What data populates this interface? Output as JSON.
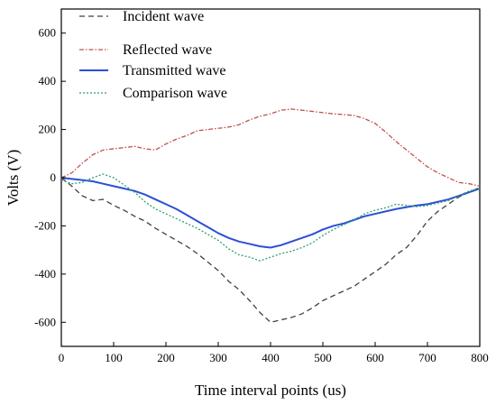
{
  "chart_data": {
    "type": "line",
    "title": "",
    "xlabel": "Time interval points (us)",
    "ylabel": "Volts (V)",
    "xlim": [
      0,
      800
    ],
    "ylim": [
      -700,
      700
    ],
    "x_ticks": [
      0,
      100,
      200,
      300,
      400,
      500,
      600,
      700,
      800
    ],
    "y_ticks": [
      -600,
      -400,
      -200,
      0,
      200,
      400,
      600
    ],
    "grid": false,
    "legend_position": "top-left",
    "series": [
      {
        "name": "Incident wave",
        "color": "#404040",
        "style": "dash",
        "x": [
          0,
          20,
          40,
          60,
          80,
          100,
          120,
          140,
          160,
          180,
          200,
          220,
          240,
          260,
          280,
          300,
          320,
          340,
          360,
          380,
          400,
          420,
          440,
          460,
          480,
          500,
          520,
          540,
          560,
          580,
          600,
          620,
          640,
          660,
          680,
          700,
          720,
          740,
          760,
          780,
          800
        ],
        "values": [
          0,
          -35,
          -75,
          -95,
          -90,
          -115,
          -135,
          -160,
          -180,
          -210,
          -235,
          -260,
          -285,
          -315,
          -350,
          -385,
          -430,
          -465,
          -510,
          -560,
          -600,
          -590,
          -580,
          -565,
          -540,
          -510,
          -490,
          -470,
          -450,
          -420,
          -390,
          -360,
          -320,
          -290,
          -240,
          -180,
          -140,
          -110,
          -80,
          -60,
          -40
        ]
      },
      {
        "name": "Reflected wave",
        "color": "#c0504d",
        "style": "dashdot",
        "x": [
          0,
          20,
          40,
          60,
          80,
          100,
          120,
          140,
          160,
          180,
          200,
          220,
          240,
          260,
          280,
          300,
          320,
          340,
          360,
          380,
          400,
          420,
          440,
          460,
          480,
          500,
          520,
          540,
          560,
          580,
          600,
          620,
          640,
          660,
          680,
          700,
          720,
          740,
          760,
          780,
          800
        ],
        "values": [
          0,
          20,
          60,
          95,
          115,
          120,
          125,
          130,
          120,
          115,
          140,
          160,
          175,
          195,
          200,
          205,
          210,
          220,
          240,
          255,
          265,
          280,
          285,
          280,
          275,
          270,
          265,
          262,
          258,
          245,
          225,
          190,
          150,
          115,
          80,
          45,
          20,
          0,
          -20,
          -25,
          -35
        ]
      },
      {
        "name": "Transmitted wave",
        "color": "#2b4fd6",
        "style": "solid",
        "x": [
          0,
          20,
          40,
          60,
          80,
          100,
          120,
          140,
          160,
          180,
          200,
          220,
          240,
          260,
          280,
          300,
          320,
          340,
          360,
          380,
          400,
          420,
          440,
          460,
          480,
          500,
          520,
          540,
          560,
          580,
          600,
          620,
          640,
          660,
          680,
          700,
          720,
          740,
          760,
          780,
          800
        ],
        "values": [
          0,
          -5,
          -10,
          -15,
          -25,
          -35,
          -45,
          -55,
          -70,
          -90,
          -110,
          -130,
          -155,
          -180,
          -205,
          -230,
          -250,
          -265,
          -275,
          -285,
          -290,
          -280,
          -265,
          -250,
          -235,
          -215,
          -200,
          -190,
          -175,
          -160,
          -150,
          -140,
          -130,
          -122,
          -115,
          -110,
          -100,
          -90,
          -75,
          -60,
          -45
        ]
      },
      {
        "name": "Comparison wave",
        "color": "#2e9e6e",
        "style": "dot",
        "x": [
          0,
          20,
          40,
          60,
          80,
          100,
          120,
          140,
          160,
          180,
          200,
          220,
          240,
          260,
          280,
          300,
          320,
          340,
          360,
          380,
          400,
          420,
          440,
          460,
          480,
          500,
          520,
          540,
          560,
          580,
          600,
          620,
          640,
          660,
          680,
          700,
          720,
          740,
          760,
          780,
          800
        ],
        "values": [
          -10,
          -25,
          -20,
          0,
          15,
          0,
          -30,
          -60,
          -100,
          -130,
          -150,
          -170,
          -190,
          -210,
          -235,
          -260,
          -295,
          -320,
          -330,
          -345,
          -330,
          -315,
          -305,
          -290,
          -270,
          -240,
          -215,
          -195,
          -175,
          -150,
          -135,
          -125,
          -110,
          -115,
          -120,
          -115,
          -105,
          -95,
          -75,
          -55,
          -45
        ]
      }
    ]
  }
}
